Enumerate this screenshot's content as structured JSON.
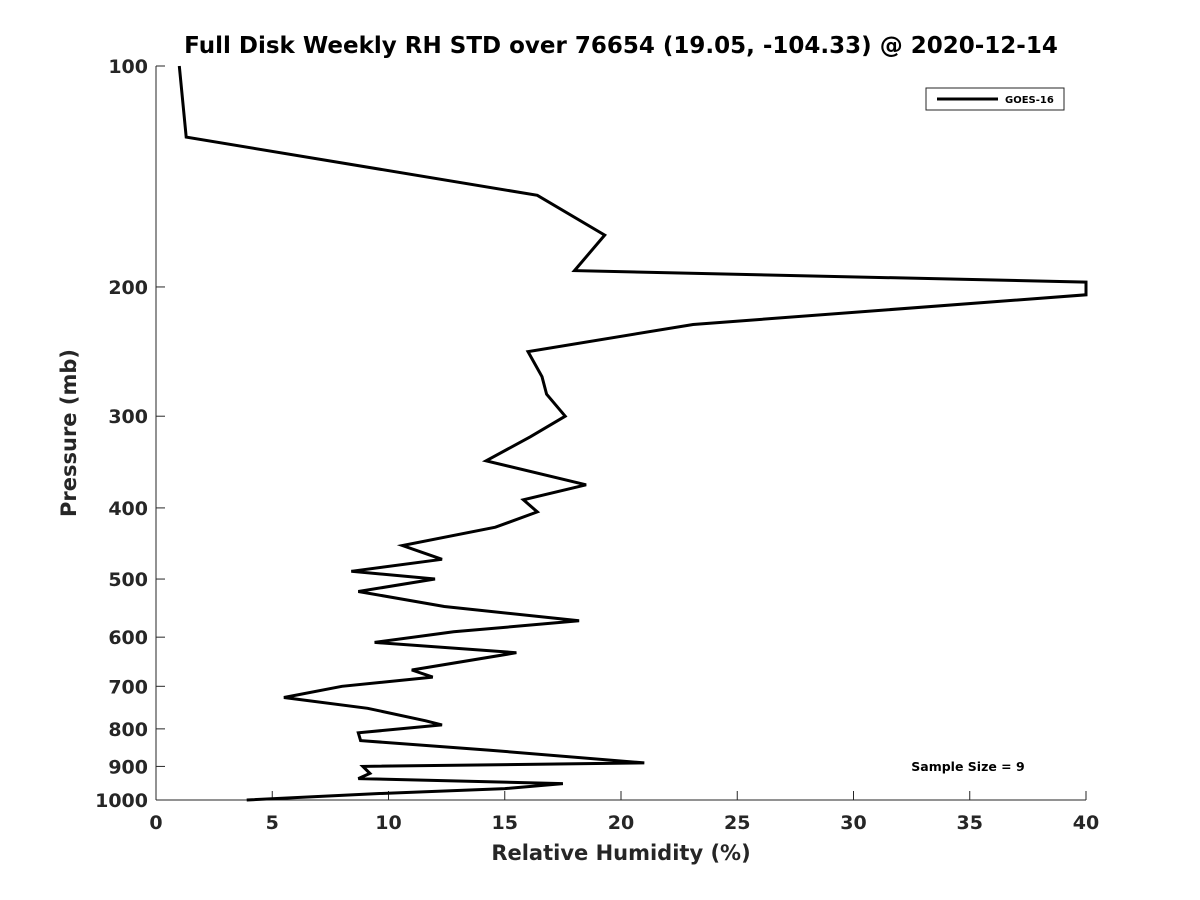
{
  "chart_data": {
    "type": "line",
    "title": "Full Disk Weekly RH STD over 76654 (19.05, -104.33) @ 2020-12-14",
    "xlabel": "Relative Humidity (%)",
    "ylabel": "Pressure (mb)",
    "xlim": [
      0,
      40
    ],
    "ylim": [
      100,
      1000
    ],
    "y_scale": "log",
    "y_reversed": true,
    "grid": false,
    "x_ticks": [
      0,
      5,
      10,
      15,
      20,
      25,
      30,
      35,
      40
    ],
    "y_ticks": [
      100,
      200,
      300,
      400,
      500,
      600,
      700,
      800,
      900,
      1000
    ],
    "legend": {
      "position": "top-right",
      "entries": [
        "GOES-16"
      ]
    },
    "annotation": "Sample Size = 9",
    "series": [
      {
        "name": "GOES-16",
        "color": "#000000",
        "points": [
          [
            1.0,
            100
          ],
          [
            1.3,
            125
          ],
          [
            16.4,
            150
          ],
          [
            19.3,
            170
          ],
          [
            18.0,
            190
          ],
          [
            40.0,
            197
          ],
          [
            40.0,
            205
          ],
          [
            23.1,
            225
          ],
          [
            16.0,
            245
          ],
          [
            16.6,
            265
          ],
          [
            16.8,
            280
          ],
          [
            17.6,
            300
          ],
          [
            16.1,
            320
          ],
          [
            14.2,
            345
          ],
          [
            18.5,
            372
          ],
          [
            15.8,
            390
          ],
          [
            16.4,
            405
          ],
          [
            14.6,
            425
          ],
          [
            10.6,
            450
          ],
          [
            12.3,
            470
          ],
          [
            8.4,
            488
          ],
          [
            12.0,
            500
          ],
          [
            8.7,
            520
          ],
          [
            12.4,
            545
          ],
          [
            18.2,
            570
          ],
          [
            12.8,
            590
          ],
          [
            9.4,
            610
          ],
          [
            15.5,
            630
          ],
          [
            11.0,
            665
          ],
          [
            11.9,
            680
          ],
          [
            8.0,
            700
          ],
          [
            5.5,
            725
          ],
          [
            9.1,
            750
          ],
          [
            11.6,
            780
          ],
          [
            12.3,
            790
          ],
          [
            8.7,
            810
          ],
          [
            8.8,
            830
          ],
          [
            14.3,
            855
          ],
          [
            21.0,
            890
          ],
          [
            8.9,
            900
          ],
          [
            9.2,
            920
          ],
          [
            8.7,
            935
          ],
          [
            17.5,
            950
          ],
          [
            15.0,
            965
          ],
          [
            9.5,
            980
          ],
          [
            3.9,
            1000
          ]
        ]
      }
    ]
  }
}
